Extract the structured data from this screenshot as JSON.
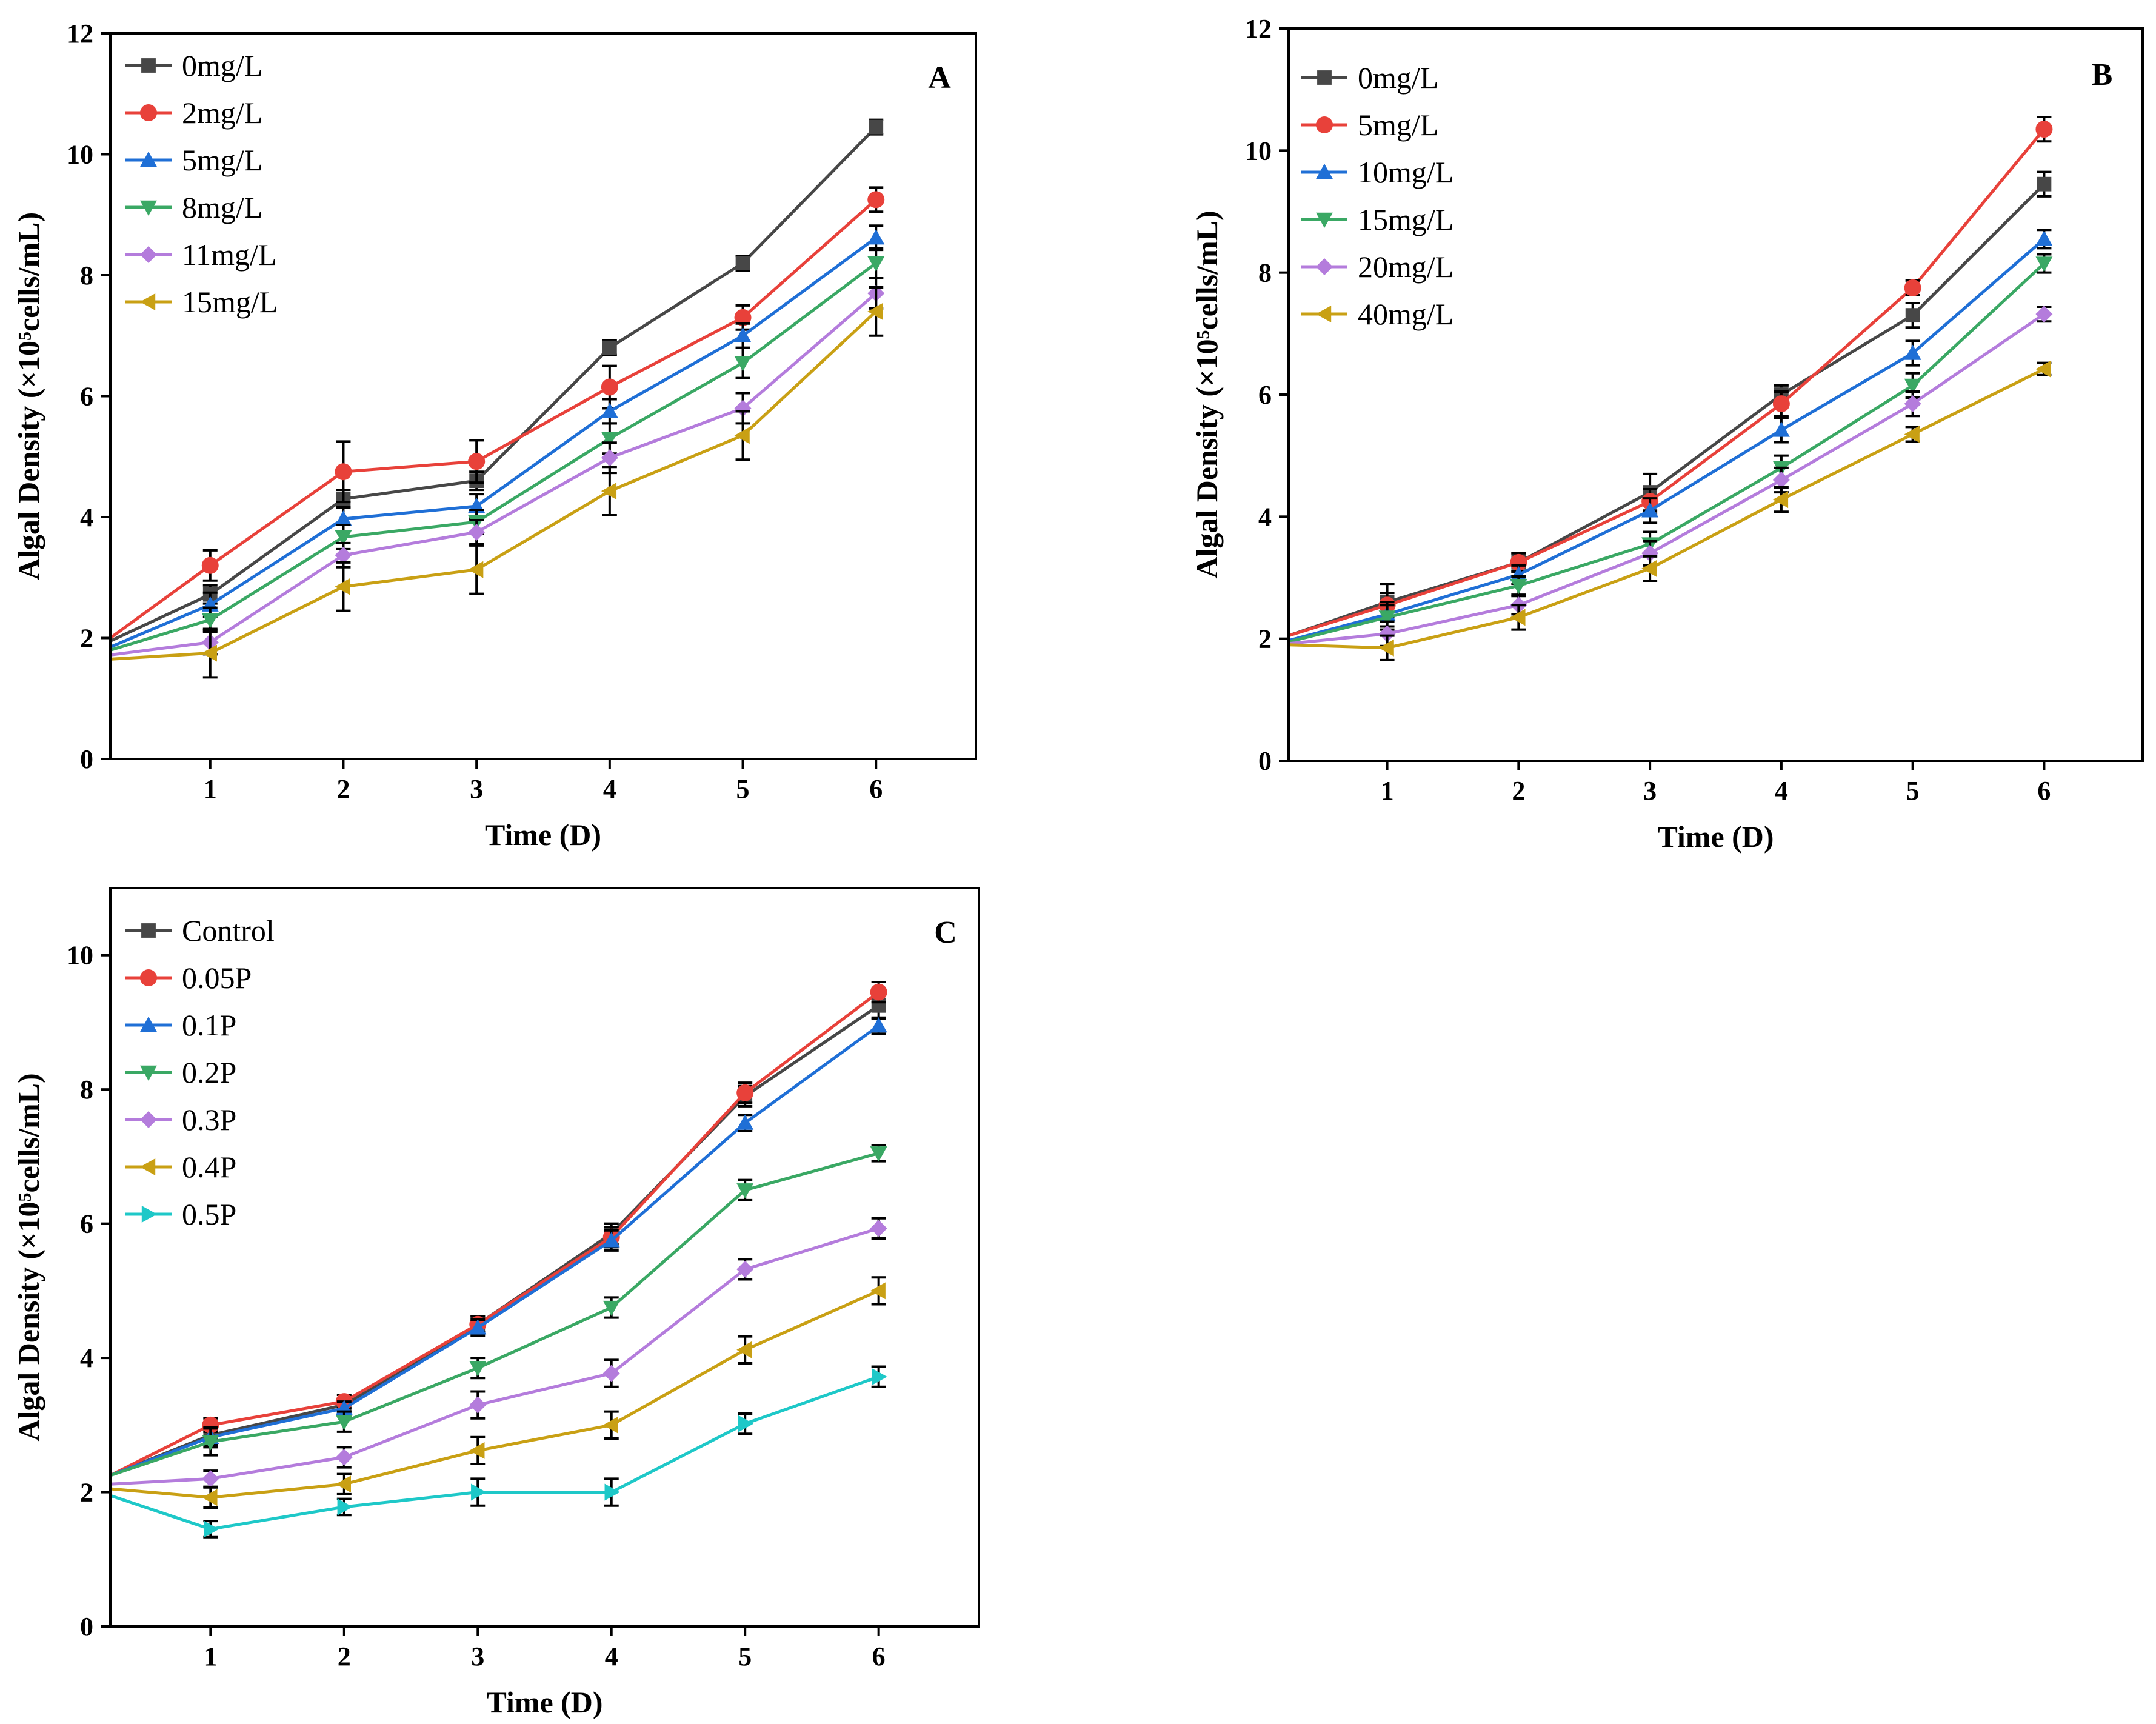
{
  "figure": {
    "colors": {
      "black": "#474747",
      "red": "#e8413a",
      "blue": "#1f6fd6",
      "green": "#3aa864",
      "purple": "#b47cdc",
      "gold": "#c9a014",
      "cyan": "#1ec8c8"
    }
  },
  "chart_data": [
    {
      "id": "A",
      "type": "line",
      "panel_label": "A",
      "xlabel": "Time (D)",
      "ylabel": "Algal Density (×10⁵cells/mL)",
      "ylim": [
        0,
        12
      ],
      "xlim": [
        0.25,
        6.75
      ],
      "x_ticks": [
        1,
        2,
        3,
        4,
        5,
        6
      ],
      "x_tick_labels": [
        "1",
        "2",
        "3",
        "4",
        "5",
        "6"
      ],
      "y_ticks": [
        0,
        2,
        4,
        6,
        8,
        10,
        12
      ],
      "y_tick_labels": [
        "0",
        "2",
        "4",
        "6",
        "8",
        "10",
        "12"
      ],
      "legend_position": "top-left",
      "x": [
        0.25,
        1,
        2,
        3,
        4,
        5,
        6
      ],
      "series": [
        {
          "name": "0mg/L",
          "color": "#474747",
          "marker": "square",
          "values": [
            1.95,
            2.72,
            4.3,
            4.6,
            6.8,
            8.2,
            10.45
          ],
          "errors": [
            0,
            0.15,
            0.15,
            0.15,
            0.12,
            0.12,
            0.12
          ]
        },
        {
          "name": "2mg/L",
          "color": "#e8413a",
          "marker": "circle",
          "values": [
            2.0,
            3.2,
            4.75,
            4.92,
            6.15,
            7.3,
            9.25
          ],
          "errors": [
            0,
            0.25,
            0.5,
            0.35,
            0.35,
            0.2,
            0.2
          ]
        },
        {
          "name": "5mg/L",
          "color": "#1f6fd6",
          "marker": "triangle-up",
          "values": [
            1.85,
            2.55,
            3.97,
            4.18,
            5.75,
            7.0,
            8.62
          ],
          "errors": [
            0,
            0.2,
            0.2,
            0.2,
            0.2,
            0.2,
            0.2
          ]
        },
        {
          "name": "8mg/L",
          "color": "#3aa864",
          "marker": "triangle-down",
          "values": [
            1.8,
            2.3,
            3.67,
            3.92,
            5.3,
            6.55,
            8.2
          ],
          "errors": [
            0,
            0.2,
            0.2,
            0.2,
            0.25,
            0.25,
            0.25
          ]
        },
        {
          "name": "11mg/L",
          "color": "#b47cdc",
          "marker": "diamond",
          "values": [
            1.72,
            1.93,
            3.37,
            3.75,
            4.98,
            5.8,
            7.7
          ],
          "errors": [
            0,
            0.2,
            0.2,
            0.2,
            0.25,
            0.25,
            0.25
          ]
        },
        {
          "name": "15mg/L",
          "color": "#c9a014",
          "marker": "triangle-left",
          "values": [
            1.65,
            1.75,
            2.85,
            3.13,
            4.43,
            5.35,
            7.4
          ],
          "errors": [
            0,
            0.4,
            0.4,
            0.4,
            0.4,
            0.4,
            0.4
          ]
        }
      ]
    },
    {
      "id": "B",
      "type": "line",
      "panel_label": "B",
      "xlabel": "Time (D)",
      "ylabel": "Algal Density (×10⁵cells/mL)",
      "ylim": [
        0,
        12
      ],
      "xlim": [
        0.25,
        6.75
      ],
      "x_ticks": [
        1,
        2,
        3,
        4,
        5,
        6
      ],
      "x_tick_labels": [
        "1",
        "2",
        "3",
        "4",
        "5",
        "6"
      ],
      "y_ticks": [
        0,
        2,
        4,
        6,
        8,
        10,
        12
      ],
      "y_tick_labels": [
        "0",
        "2",
        "4",
        "6",
        "8",
        "10",
        "12"
      ],
      "legend_position": "top-left",
      "x": [
        0.25,
        1,
        2,
        3,
        4,
        5,
        6
      ],
      "series": [
        {
          "name": "0mg/L",
          "color": "#474747",
          "marker": "square",
          "values": [
            2.05,
            2.6,
            3.25,
            4.4,
            6.0,
            7.3,
            9.45
          ],
          "errors": [
            0,
            0.3,
            0.15,
            0.3,
            0.15,
            0.2,
            0.2
          ]
        },
        {
          "name": "5mg/L",
          "color": "#e8413a",
          "marker": "circle",
          "values": [
            2.05,
            2.55,
            3.25,
            4.25,
            5.85,
            7.75,
            10.35
          ],
          "errors": [
            0,
            0.2,
            0.15,
            0.2,
            0.2,
            0.12,
            0.2
          ]
        },
        {
          "name": "10mg/L",
          "color": "#1f6fd6",
          "marker": "triangle-up",
          "values": [
            1.97,
            2.4,
            3.05,
            4.1,
            5.42,
            6.68,
            8.55
          ],
          "errors": [
            0,
            0.2,
            0.15,
            0.2,
            0.2,
            0.2,
            0.15
          ]
        },
        {
          "name": "15mg/L",
          "color": "#3aa864",
          "marker": "triangle-down",
          "values": [
            1.95,
            2.35,
            2.87,
            3.55,
            4.8,
            6.15,
            8.15
          ],
          "errors": [
            0,
            0.2,
            0.15,
            0.2,
            0.2,
            0.2,
            0.15
          ]
        },
        {
          "name": "20mg/L",
          "color": "#b47cdc",
          "marker": "diamond",
          "values": [
            1.92,
            2.08,
            2.55,
            3.4,
            4.6,
            5.85,
            7.32
          ],
          "errors": [
            0,
            0.2,
            0.15,
            0.2,
            0.2,
            0.2,
            0.12
          ]
        },
        {
          "name": "40mg/L",
          "color": "#c9a014",
          "marker": "triangle-left",
          "values": [
            1.9,
            1.85,
            2.35,
            3.15,
            4.28,
            5.35,
            6.42
          ],
          "errors": [
            0,
            0.2,
            0.2,
            0.2,
            0.2,
            0.12,
            0.1
          ]
        }
      ]
    },
    {
      "id": "C",
      "type": "line",
      "panel_label": "C",
      "xlabel": "Time (D)",
      "ylabel": "Algal Density (×10⁵cells/mL)",
      "ylim": [
        0,
        11
      ],
      "xlim": [
        0.25,
        6.75
      ],
      "x_ticks": [
        1,
        2,
        3,
        4,
        5,
        6
      ],
      "x_tick_labels": [
        "1",
        "2",
        "3",
        "4",
        "5",
        "6"
      ],
      "y_ticks": [
        0,
        2,
        4,
        6,
        8,
        10
      ],
      "y_tick_labels": [
        "0",
        "2",
        "4",
        "6",
        "8",
        "10"
      ],
      "legend_position": "top-left",
      "x": [
        0.25,
        1,
        2,
        3,
        4,
        5,
        6
      ],
      "series": [
        {
          "name": "Control",
          "color": "#474747",
          "marker": "square",
          "values": [
            2.25,
            2.85,
            3.3,
            4.5,
            5.85,
            7.9,
            9.25
          ],
          "errors": [
            0,
            0.15,
            0.1,
            0.12,
            0.15,
            0.15,
            0.2
          ]
        },
        {
          "name": "0.05P",
          "color": "#e8413a",
          "marker": "circle",
          "values": [
            2.25,
            3.0,
            3.35,
            4.5,
            5.8,
            7.95,
            9.45
          ],
          "errors": [
            0,
            0.1,
            0.1,
            0.12,
            0.15,
            0.15,
            0.15
          ]
        },
        {
          "name": "0.1P",
          "color": "#1f6fd6",
          "marker": "triangle-up",
          "values": [
            2.25,
            2.82,
            3.25,
            4.45,
            5.75,
            7.5,
            8.95
          ],
          "errors": [
            0,
            0.15,
            0.1,
            0.12,
            0.15,
            0.12,
            0.12
          ]
        },
        {
          "name": "0.2P",
          "color": "#3aa864",
          "marker": "triangle-down",
          "values": [
            2.25,
            2.75,
            3.05,
            3.85,
            4.75,
            6.5,
            7.05
          ],
          "errors": [
            0,
            0.2,
            0.15,
            0.15,
            0.15,
            0.15,
            0.12
          ]
        },
        {
          "name": "0.3P",
          "color": "#b47cdc",
          "marker": "diamond",
          "values": [
            2.12,
            2.2,
            2.52,
            3.3,
            3.77,
            5.32,
            5.93
          ],
          "errors": [
            0,
            0.12,
            0.15,
            0.2,
            0.2,
            0.15,
            0.15
          ]
        },
        {
          "name": "0.4P",
          "color": "#c9a014",
          "marker": "triangle-left",
          "values": [
            2.05,
            1.92,
            2.12,
            2.62,
            3.0,
            4.12,
            5.0
          ],
          "errors": [
            0,
            0.15,
            0.15,
            0.2,
            0.2,
            0.2,
            0.2
          ]
        },
        {
          "name": "0.5P",
          "color": "#1ec8c8",
          "marker": "triangle-right",
          "values": [
            1.95,
            1.45,
            1.78,
            2.0,
            2.0,
            3.02,
            3.72
          ],
          "errors": [
            0,
            0.12,
            0.12,
            0.2,
            0.2,
            0.15,
            0.15
          ]
        }
      ]
    }
  ]
}
